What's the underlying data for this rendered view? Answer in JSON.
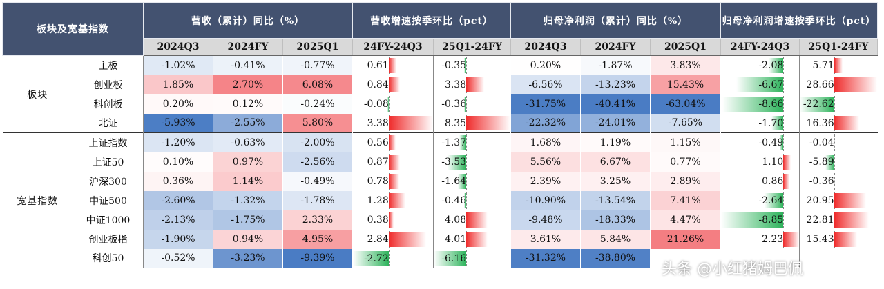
{
  "table": {
    "corner_label": "板块及宽基指数",
    "group_headers": [
      "营收（累计）同比（%）",
      "营收增速按季环比（pct）",
      "归母净利润（累计）同比（%）",
      "归母净利润增速按季环比（pct）"
    ],
    "subheaders": [
      "2024Q3",
      "2024FY",
      "2025Q1",
      "24FY-24Q3",
      "25Q1-24FY",
      "2024Q3",
      "2024FY",
      "2025Q1",
      "24FY-24Q3",
      "25Q1-24FY"
    ],
    "groups": [
      {
        "name": "板块",
        "rows": [
          {
            "name": "主板",
            "values": [
              "-1.02%",
              "-0.41%",
              "-0.77%",
              "0.61",
              "-0.35",
              "0.20%",
              "-1.87%",
              "3.83%",
              "-2.08",
              "5.71"
            ]
          },
          {
            "name": "创业板",
            "values": [
              "1.85%",
              "2.70%",
              "6.08%",
              "0.84",
              "3.38",
              "-6.56%",
              "-13.23%",
              "15.43%",
              "-6.67",
              "28.66"
            ]
          },
          {
            "name": "科创板",
            "values": [
              "0.20%",
              "0.12%",
              "-0.24%",
              "-0.08",
              "-0.36",
              "-31.75%",
              "-40.41%",
              "-63.04%",
              "-8.66",
              "-22.62"
            ]
          },
          {
            "name": "北证",
            "values": [
              "-5.93%",
              "-2.55%",
              "5.80%",
              "3.38",
              "8.35",
              "-22.32%",
              "-24.01%",
              "-7.65%",
              "-1.70",
              "16.36"
            ]
          }
        ]
      },
      {
        "name": "宽基指数",
        "rows": [
          {
            "name": "上证指数",
            "values": [
              "-1.20%",
              "-0.63%",
              "-2.00%",
              "0.56",
              "-1.37",
              "1.68%",
              "1.19%",
              "1.15%",
              "-0.49",
              "-0.04"
            ]
          },
          {
            "name": "上证50",
            "values": [
              "0.10%",
              "0.97%",
              "-2.56%",
              "0.87",
              "-3.53",
              "5.56%",
              "6.67%",
              "0.77%",
              "1.10",
              "-5.89"
            ]
          },
          {
            "name": "沪深300",
            "values": [
              "0.36%",
              "1.14%",
              "-0.49%",
              "0.78",
              "-1.64",
              "2.39%",
              "3.25%",
              "2.89%",
              "0.86",
              "-0.36"
            ]
          },
          {
            "name": "中证500",
            "values": [
              "-2.60%",
              "-1.32%",
              "-1.78%",
              "1.28",
              "-0.46",
              "-10.90%",
              "-13.54%",
              "7.41%",
              "-2.64",
              "20.95"
            ]
          },
          {
            "name": "中证1000",
            "values": [
              "-2.13%",
              "-1.75%",
              "2.33%",
              "0.38",
              "4.08",
              "-9.48%",
              "-18.33%",
              "4.47%",
              "-8.85",
              "22.81"
            ]
          },
          {
            "name": "创业板指",
            "values": [
              "-1.90%",
              "0.94%",
              "4.95%",
              "2.84",
              "4.01",
              "3.61%",
              "5.84%",
              "21.26%",
              "2.23",
              "15.43"
            ]
          },
          {
            "name": "科创50",
            "values": [
              "-0.52%",
              "-3.23%",
              "-9.39%",
              "-2.72",
              "-6.16",
              "-31.32%",
              "-38.80%",
              "",
              "",
              ""
            ]
          }
        ]
      }
    ]
  },
  "chart_data": {
    "type": "table",
    "columns": [
      "2024Q3",
      "2024FY",
      "2025Q1",
      "24FY-24Q3",
      "25Q1-24FY",
      "2024Q3",
      "2024FY",
      "2025Q1",
      "24FY-24Q3",
      "25Q1-24FY"
    ],
    "rows": [
      "主板",
      "创业板",
      "科创板",
      "北证",
      "上证指数",
      "上证50",
      "沪深300",
      "中证500",
      "中证1000",
      "创业板指",
      "科创50"
    ],
    "values": [
      [
        -1.02,
        -0.41,
        -0.77,
        0.61,
        -0.35,
        0.2,
        -1.87,
        3.83,
        -2.08,
        5.71
      ],
      [
        1.85,
        2.7,
        6.08,
        0.84,
        3.38,
        -6.56,
        -13.23,
        15.43,
        -6.67,
        28.66
      ],
      [
        0.2,
        0.12,
        -0.24,
        -0.08,
        -0.36,
        -31.75,
        -40.41,
        -63.04,
        -8.66,
        -22.62
      ],
      [
        -5.93,
        -2.55,
        5.8,
        3.38,
        8.35,
        -22.32,
        -24.01,
        -7.65,
        -1.7,
        16.36
      ],
      [
        -1.2,
        -0.63,
        -2.0,
        0.56,
        -1.37,
        1.68,
        1.19,
        1.15,
        -0.49,
        -0.04
      ],
      [
        0.1,
        0.97,
        -2.56,
        0.87,
        -3.53,
        5.56,
        6.67,
        0.77,
        1.1,
        -5.89
      ],
      [
        0.36,
        1.14,
        -0.49,
        0.78,
        -1.64,
        2.39,
        3.25,
        2.89,
        0.86,
        -0.36
      ],
      [
        -2.6,
        -1.32,
        -1.78,
        1.28,
        -0.46,
        -10.9,
        -13.54,
        7.41,
        -2.64,
        20.95
      ],
      [
        -2.13,
        -1.75,
        2.33,
        0.38,
        4.08,
        -9.48,
        -18.33,
        4.47,
        -8.85,
        22.81
      ],
      [
        -1.9,
        0.94,
        4.95,
        2.84,
        4.01,
        3.61,
        5.84,
        21.26,
        2.23,
        15.43
      ],
      [
        -0.52,
        -3.23,
        -9.39,
        -2.72,
        -6.16,
        -31.32,
        -38.8,
        null,
        null,
        null
      ]
    ],
    "heatmap_colors": {
      "positive": "#f0494f",
      "negative": "#4a7cc4",
      "neutral": "#ffffff"
    },
    "bar_colors": {
      "positive": "#ef2b2b",
      "negative": "#2db35b"
    }
  },
  "watermark": "头条 @小红猪姆巴佩"
}
